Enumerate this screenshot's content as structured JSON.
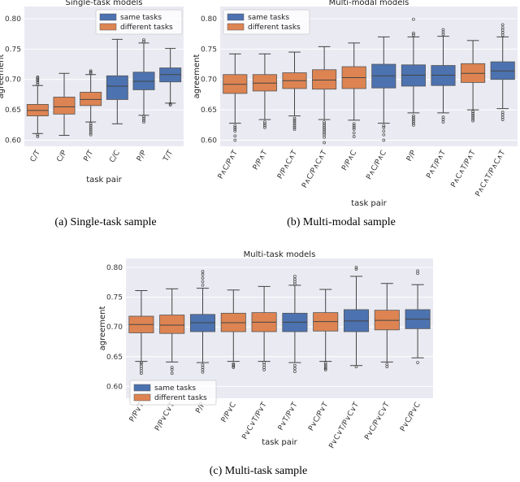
{
  "colors": {
    "same": "#4c72b0",
    "different": "#dd8452"
  },
  "chart_data": [
    {
      "type": "box",
      "title": "Single-task models",
      "xlabel": "task pair",
      "ylabel": "agreement",
      "caption": "(a) Single-task sample",
      "ylim": [
        0.59,
        0.82
      ],
      "yticks": [
        "0.60",
        "0.65",
        "0.70",
        "0.75",
        "0.80"
      ],
      "legend_position": "top-right",
      "legend": [
        {
          "label": "same tasks",
          "group": "same"
        },
        {
          "label": "different tasks",
          "group": "different"
        }
      ],
      "categories": [
        "C/T",
        "C/P",
        "P/T",
        "C/C",
        "P/P",
        "T/T"
      ],
      "boxes": [
        {
          "label": "C/T",
          "group": "different",
          "whislo": 0.611,
          "q1": 0.64,
          "median": 0.649,
          "q3": 0.659,
          "whishi": 0.69,
          "fliers": [
            0.606,
            0.609,
            0.692,
            0.695,
            0.698,
            0.7,
            0.702,
            0.704
          ]
        },
        {
          "label": "C/P",
          "group": "different",
          "whislo": 0.608,
          "q1": 0.643,
          "median": 0.655,
          "q3": 0.671,
          "whishi": 0.71,
          "fliers": []
        },
        {
          "label": "P/T",
          "group": "different",
          "whislo": 0.63,
          "q1": 0.657,
          "median": 0.667,
          "q3": 0.679,
          "whishi": 0.708,
          "fliers": [
            0.609,
            0.612,
            0.615,
            0.618,
            0.621,
            0.624,
            0.627,
            0.71,
            0.712,
            0.714
          ]
        },
        {
          "label": "C/C",
          "group": "same",
          "whislo": 0.627,
          "q1": 0.667,
          "median": 0.689,
          "q3": 0.706,
          "whishi": 0.766,
          "fliers": []
        },
        {
          "label": "P/P",
          "group": "same",
          "whislo": 0.641,
          "q1": 0.683,
          "median": 0.697,
          "q3": 0.712,
          "whishi": 0.76,
          "fliers": [
            0.63,
            0.633,
            0.636,
            0.639,
            0.762,
            0.765
          ]
        },
        {
          "label": "T/T",
          "group": "same",
          "whislo": 0.661,
          "q1": 0.696,
          "median": 0.708,
          "q3": 0.719,
          "whishi": 0.751,
          "fliers": [
            0.658,
            0.66
          ]
        }
      ]
    },
    {
      "type": "box",
      "title": "Multi-modal models",
      "xlabel": "task pair",
      "ylabel": "agreement",
      "caption": "(b) Multi-modal sample",
      "ylim": [
        0.59,
        0.82
      ],
      "yticks": [
        "0.60",
        "0.65",
        "0.70",
        "0.75",
        "0.80"
      ],
      "legend_position": "top-left",
      "legend": [
        {
          "label": "same tasks",
          "group": "same"
        },
        {
          "label": "different tasks",
          "group": "different"
        }
      ],
      "categories": [
        "P∧C/P∧T",
        "P/P∧T",
        "P/P∧C∧T",
        "P∧C/P∧C∧T",
        "P/P∧C",
        "P∧C/P∧C",
        "P/P",
        "P∧T/P∧T",
        "P∧C∧T/P∧T",
        "P∧C∧T/P∧C∧T"
      ],
      "boxes": [
        {
          "label": "P∧C/P∧T",
          "group": "different",
          "whislo": 0.628,
          "q1": 0.677,
          "median": 0.692,
          "q3": 0.708,
          "whishi": 0.742,
          "fliers": [
            0.6,
            0.607,
            0.615,
            0.618,
            0.621,
            0.624
          ]
        },
        {
          "label": "P/P∧T",
          "group": "different",
          "whislo": 0.634,
          "q1": 0.681,
          "median": 0.694,
          "q3": 0.708,
          "whishi": 0.742,
          "fliers": [
            0.621,
            0.624,
            0.627,
            0.63
          ]
        },
        {
          "label": "P/P∧C∧T",
          "group": "different",
          "whislo": 0.64,
          "q1": 0.685,
          "median": 0.698,
          "q3": 0.711,
          "whishi": 0.745,
          "fliers": [
            0.618,
            0.621,
            0.624,
            0.627,
            0.63,
            0.633,
            0.636
          ]
        },
        {
          "label": "P∧C/P∧C∧T",
          "group": "different",
          "whislo": 0.634,
          "q1": 0.684,
          "median": 0.699,
          "q3": 0.716,
          "whishi": 0.754,
          "fliers": [
            0.596,
            0.605,
            0.609,
            0.612,
            0.615,
            0.618,
            0.621,
            0.624,
            0.627,
            0.63
          ]
        },
        {
          "label": "P/P∧C",
          "group": "different",
          "whislo": 0.633,
          "q1": 0.685,
          "median": 0.703,
          "q3": 0.721,
          "whishi": 0.76,
          "fliers": [
            0.606,
            0.612,
            0.618,
            0.621,
            0.624,
            0.627
          ]
        },
        {
          "label": "P∧C/P∧C",
          "group": "same",
          "whislo": 0.628,
          "q1": 0.686,
          "median": 0.706,
          "q3": 0.725,
          "whishi": 0.77,
          "fliers": [
            0.6,
            0.609,
            0.615,
            0.621,
            0.624
          ]
        },
        {
          "label": "P/P",
          "group": "same",
          "whislo": 0.645,
          "q1": 0.689,
          "median": 0.707,
          "q3": 0.724,
          "whishi": 0.77,
          "fliers": [
            0.625,
            0.628,
            0.631,
            0.634,
            0.637,
            0.64,
            0.773,
            0.776,
            0.799
          ]
        },
        {
          "label": "P∧T/P∧T",
          "group": "same",
          "whislo": 0.645,
          "q1": 0.69,
          "median": 0.707,
          "q3": 0.723,
          "whishi": 0.771,
          "fliers": [
            0.63,
            0.634,
            0.638,
            0.774,
            0.778,
            0.782
          ]
        },
        {
          "label": "P∧C∧T/P∧T",
          "group": "different",
          "whislo": 0.65,
          "q1": 0.695,
          "median": 0.71,
          "q3": 0.726,
          "whishi": 0.764,
          "fliers": [
            0.632,
            0.635,
            0.638,
            0.641,
            0.644,
            0.647
          ]
        },
        {
          "label": "P∧C∧T/P∧C∧T",
          "group": "same",
          "whislo": 0.652,
          "q1": 0.7,
          "median": 0.714,
          "q3": 0.729,
          "whishi": 0.77,
          "fliers": [
            0.634,
            0.638,
            0.642,
            0.646,
            0.773,
            0.777,
            0.781,
            0.785,
            0.79
          ]
        }
      ]
    },
    {
      "type": "box",
      "title": "Multi-task models",
      "xlabel": "task pair",
      "ylabel": "agreement",
      "caption": "(c) Multi-task sample",
      "ylim": [
        0.58,
        0.815
      ],
      "yticks": [
        "0.60",
        "0.65",
        "0.70",
        "0.75",
        "0.80"
      ],
      "legend_position": "bottom-left",
      "legend": [
        {
          "label": "same tasks",
          "group": "same"
        },
        {
          "label": "different tasks",
          "group": "different"
        }
      ],
      "categories": [
        "P/P∨T",
        "P/P∨C∨T",
        "P/P",
        "P/P∨C",
        "P∨C∨T/P∨T",
        "P∨T/P∨T",
        "P∨C/P∨T",
        "P∨C∨T/P∨C∨T",
        "P∨C/P∨C∨T",
        "P∨C/P∨C"
      ],
      "boxes": [
        {
          "label": "P/P∨T",
          "group": "different",
          "whislo": 0.642,
          "q1": 0.69,
          "median": 0.704,
          "q3": 0.718,
          "whishi": 0.761,
          "fliers": [
            0.622,
            0.626,
            0.63,
            0.634,
            0.638,
            0.64
          ]
        },
        {
          "label": "P/P∨C∨T",
          "group": "different",
          "whislo": 0.641,
          "q1": 0.689,
          "median": 0.703,
          "q3": 0.72,
          "whishi": 0.764,
          "fliers": [
            0.622,
            0.628,
            0.632
          ]
        },
        {
          "label": "P/P",
          "group": "same",
          "whislo": 0.64,
          "q1": 0.692,
          "median": 0.707,
          "q3": 0.721,
          "whishi": 0.765,
          "fliers": [
            0.624,
            0.628,
            0.632,
            0.636,
            0.77,
            0.776,
            0.782,
            0.788,
            0.793
          ]
        },
        {
          "label": "P/P∨C",
          "group": "different",
          "whislo": 0.642,
          "q1": 0.692,
          "median": 0.707,
          "q3": 0.723,
          "whishi": 0.762,
          "fliers": [
            0.632,
            0.634,
            0.636,
            0.638
          ]
        },
        {
          "label": "P∨C∨T/P∨T",
          "group": "different",
          "whislo": 0.642,
          "q1": 0.692,
          "median": 0.708,
          "q3": 0.724,
          "whishi": 0.768,
          "fliers": [
            0.628,
            0.632,
            0.636,
            0.64
          ]
        },
        {
          "label": "P∨T/P∨T",
          "group": "same",
          "whislo": 0.64,
          "q1": 0.692,
          "median": 0.708,
          "q3": 0.723,
          "whishi": 0.77,
          "fliers": [
            0.625,
            0.63,
            0.635,
            0.772,
            0.776,
            0.78,
            0.785
          ]
        },
        {
          "label": "P∨C/P∨T",
          "group": "different",
          "whislo": 0.642,
          "q1": 0.693,
          "median": 0.709,
          "q3": 0.724,
          "whishi": 0.763,
          "fliers": [
            0.628,
            0.63,
            0.633,
            0.636,
            0.639
          ]
        },
        {
          "label": "P∨C∨T/P∨C∨T",
          "group": "same",
          "whislo": 0.635,
          "q1": 0.692,
          "median": 0.71,
          "q3": 0.729,
          "whishi": 0.785,
          "fliers": [
            0.633,
            0.797,
            0.8
          ]
        },
        {
          "label": "P∨C/P∨C∨T",
          "group": "different",
          "whislo": 0.641,
          "q1": 0.695,
          "median": 0.711,
          "q3": 0.728,
          "whishi": 0.773,
          "fliers": [
            0.633,
            0.637
          ]
        },
        {
          "label": "P∨C/P∨C",
          "group": "same",
          "whislo": 0.648,
          "q1": 0.697,
          "median": 0.713,
          "q3": 0.729,
          "whishi": 0.771,
          "fliers": [
            0.64,
            0.79,
            0.794
          ]
        }
      ]
    }
  ]
}
